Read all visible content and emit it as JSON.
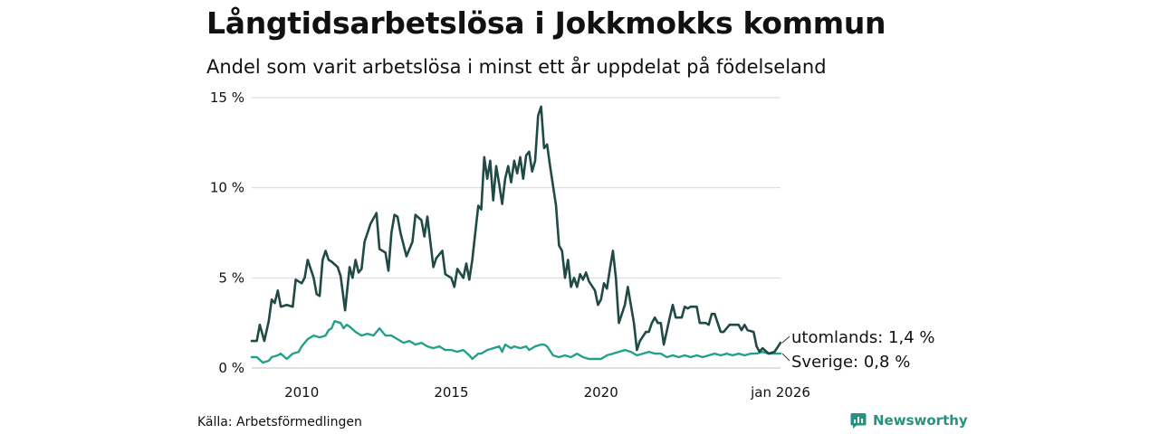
{
  "header": {
    "title": "Långtidsarbetslösa i Jokkmokks kommun",
    "subtitle": "Andel som varit arbetslösa i minst ett år uppdelat på födelseland"
  },
  "footer": {
    "source": "Källa: Arbetsförmedlingen",
    "brand": "Newsworthy"
  },
  "colors": {
    "utomlands": "#1f4a45",
    "sverige": "#22a08a",
    "grid": "#d9d9d9",
    "brand": "#27927f"
  },
  "chart_data": {
    "type": "line",
    "title": "Långtidsarbetslösa i Jokkmokks kommun",
    "subtitle": "Andel som varit arbetslösa i minst ett år uppdelat på födelseland",
    "ylim": [
      0,
      15
    ],
    "xlim": [
      2008.33,
      2026.0
    ],
    "y_ticks": [
      {
        "value": 0,
        "label": "0 %"
      },
      {
        "value": 5,
        "label": "5 %"
      },
      {
        "value": 10,
        "label": "10 %"
      },
      {
        "value": 15,
        "label": "15 %"
      }
    ],
    "x_ticks": [
      {
        "value": 2010,
        "label": "2010"
      },
      {
        "value": 2015,
        "label": "2015"
      },
      {
        "value": 2020,
        "label": "2020"
      },
      {
        "value": 2026,
        "label": "jan 2026"
      }
    ],
    "grid": "horizontal",
    "series": [
      {
        "name": "utomlands",
        "end_label": "utomlands: 1,4 %",
        "points": [
          [
            2008.33,
            1.5
          ],
          [
            2008.5,
            1.5
          ],
          [
            2008.6,
            2.4
          ],
          [
            2008.75,
            1.5
          ],
          [
            2008.9,
            2.6
          ],
          [
            2009.0,
            3.8
          ],
          [
            2009.1,
            3.6
          ],
          [
            2009.2,
            4.3
          ],
          [
            2009.3,
            3.4
          ],
          [
            2009.5,
            3.5
          ],
          [
            2009.7,
            3.4
          ],
          [
            2009.8,
            4.9
          ],
          [
            2010.0,
            4.7
          ],
          [
            2010.1,
            5.0
          ],
          [
            2010.2,
            6.0
          ],
          [
            2010.3,
            5.5
          ],
          [
            2010.4,
            5.0
          ],
          [
            2010.5,
            4.1
          ],
          [
            2010.6,
            4.0
          ],
          [
            2010.7,
            6.0
          ],
          [
            2010.8,
            6.5
          ],
          [
            2010.9,
            6.0
          ],
          [
            2011.0,
            5.9
          ],
          [
            2011.2,
            5.6
          ],
          [
            2011.3,
            5.1
          ],
          [
            2011.45,
            3.2
          ],
          [
            2011.6,
            5.6
          ],
          [
            2011.7,
            5.0
          ],
          [
            2011.8,
            6.0
          ],
          [
            2011.9,
            5.3
          ],
          [
            2012.0,
            5.5
          ],
          [
            2012.1,
            7.0
          ],
          [
            2012.3,
            8.0
          ],
          [
            2012.5,
            8.6
          ],
          [
            2012.6,
            6.6
          ],
          [
            2012.8,
            6.4
          ],
          [
            2012.9,
            5.4
          ],
          [
            2013.0,
            7.5
          ],
          [
            2013.1,
            8.5
          ],
          [
            2013.2,
            8.4
          ],
          [
            2013.3,
            7.5
          ],
          [
            2013.5,
            6.2
          ],
          [
            2013.7,
            7.0
          ],
          [
            2013.8,
            8.5
          ],
          [
            2014.0,
            8.2
          ],
          [
            2014.1,
            7.3
          ],
          [
            2014.2,
            8.4
          ],
          [
            2014.4,
            5.6
          ],
          [
            2014.5,
            6.1
          ],
          [
            2014.7,
            6.5
          ],
          [
            2014.8,
            5.2
          ],
          [
            2015.0,
            5.0
          ],
          [
            2015.1,
            4.5
          ],
          [
            2015.2,
            5.5
          ],
          [
            2015.4,
            5.0
          ],
          [
            2015.5,
            5.8
          ],
          [
            2015.6,
            4.9
          ],
          [
            2015.7,
            6.0
          ],
          [
            2015.9,
            9.0
          ],
          [
            2016.0,
            8.8
          ],
          [
            2016.1,
            11.7
          ],
          [
            2016.2,
            10.5
          ],
          [
            2016.3,
            11.5
          ],
          [
            2016.4,
            9.3
          ],
          [
            2016.5,
            11.2
          ],
          [
            2016.6,
            10.2
          ],
          [
            2016.7,
            9.1
          ],
          [
            2016.8,
            10.5
          ],
          [
            2016.9,
            11.2
          ],
          [
            2017.0,
            10.3
          ],
          [
            2017.1,
            11.5
          ],
          [
            2017.2,
            10.8
          ],
          [
            2017.3,
            11.7
          ],
          [
            2017.4,
            10.5
          ],
          [
            2017.5,
            11.8
          ],
          [
            2017.6,
            12.0
          ],
          [
            2017.7,
            10.9
          ],
          [
            2017.8,
            11.5
          ],
          [
            2017.9,
            14.0
          ],
          [
            2018.0,
            14.5
          ],
          [
            2018.1,
            12.2
          ],
          [
            2018.2,
            12.4
          ],
          [
            2018.3,
            11.2
          ],
          [
            2018.5,
            9.0
          ],
          [
            2018.6,
            6.8
          ],
          [
            2018.7,
            6.5
          ],
          [
            2018.8,
            5.0
          ],
          [
            2018.9,
            6.0
          ],
          [
            2019.0,
            4.5
          ],
          [
            2019.1,
            5.0
          ],
          [
            2019.2,
            4.5
          ],
          [
            2019.3,
            5.2
          ],
          [
            2019.4,
            4.9
          ],
          [
            2019.5,
            5.3
          ],
          [
            2019.6,
            4.8
          ],
          [
            2019.8,
            4.3
          ],
          [
            2019.9,
            3.5
          ],
          [
            2020.0,
            3.8
          ],
          [
            2020.1,
            4.7
          ],
          [
            2020.2,
            4.4
          ],
          [
            2020.3,
            5.5
          ],
          [
            2020.4,
            6.5
          ],
          [
            2020.5,
            5.0
          ],
          [
            2020.6,
            2.5
          ],
          [
            2020.7,
            3.0
          ],
          [
            2020.8,
            3.5
          ],
          [
            2020.9,
            4.5
          ],
          [
            2021.0,
            3.5
          ],
          [
            2021.1,
            2.5
          ],
          [
            2021.2,
            1.0
          ],
          [
            2021.3,
            1.5
          ],
          [
            2021.5,
            2.0
          ],
          [
            2021.6,
            2.0
          ],
          [
            2021.7,
            2.5
          ],
          [
            2021.8,
            2.8
          ],
          [
            2021.9,
            2.5
          ],
          [
            2022.0,
            2.5
          ],
          [
            2022.1,
            1.3
          ],
          [
            2022.3,
            2.8
          ],
          [
            2022.4,
            3.5
          ],
          [
            2022.5,
            2.8
          ],
          [
            2022.7,
            2.8
          ],
          [
            2022.8,
            3.4
          ],
          [
            2022.9,
            3.3
          ],
          [
            2023.0,
            3.4
          ],
          [
            2023.2,
            3.4
          ],
          [
            2023.3,
            2.5
          ],
          [
            2023.5,
            2.5
          ],
          [
            2023.6,
            2.4
          ],
          [
            2023.7,
            3.0
          ],
          [
            2023.8,
            3.0
          ],
          [
            2023.9,
            2.5
          ],
          [
            2024.0,
            2.0
          ],
          [
            2024.1,
            2.0
          ],
          [
            2024.3,
            2.4
          ],
          [
            2024.6,
            2.4
          ],
          [
            2024.7,
            2.1
          ],
          [
            2024.8,
            2.4
          ],
          [
            2024.9,
            2.1
          ],
          [
            2025.1,
            2.0
          ],
          [
            2025.2,
            1.2
          ],
          [
            2025.3,
            0.9
          ],
          [
            2025.4,
            1.1
          ],
          [
            2025.6,
            0.8
          ],
          [
            2025.8,
            0.9
          ],
          [
            2026.0,
            1.4
          ]
        ]
      },
      {
        "name": "Sverige",
        "end_label": "Sverige: 0,8 %",
        "points": [
          [
            2008.33,
            0.6
          ],
          [
            2008.5,
            0.6
          ],
          [
            2008.7,
            0.3
          ],
          [
            2008.9,
            0.4
          ],
          [
            2009.0,
            0.6
          ],
          [
            2009.2,
            0.7
          ],
          [
            2009.3,
            0.8
          ],
          [
            2009.5,
            0.5
          ],
          [
            2009.7,
            0.8
          ],
          [
            2009.9,
            0.9
          ],
          [
            2010.0,
            1.2
          ],
          [
            2010.2,
            1.6
          ],
          [
            2010.4,
            1.8
          ],
          [
            2010.6,
            1.7
          ],
          [
            2010.8,
            1.8
          ],
          [
            2010.9,
            2.1
          ],
          [
            2011.0,
            2.2
          ],
          [
            2011.1,
            2.6
          ],
          [
            2011.3,
            2.5
          ],
          [
            2011.4,
            2.2
          ],
          [
            2011.5,
            2.4
          ],
          [
            2011.6,
            2.3
          ],
          [
            2011.8,
            2.0
          ],
          [
            2012.0,
            1.8
          ],
          [
            2012.2,
            1.9
          ],
          [
            2012.4,
            1.8
          ],
          [
            2012.6,
            2.2
          ],
          [
            2012.8,
            1.8
          ],
          [
            2013.0,
            1.8
          ],
          [
            2013.2,
            1.6
          ],
          [
            2013.4,
            1.4
          ],
          [
            2013.6,
            1.5
          ],
          [
            2013.8,
            1.3
          ],
          [
            2014.0,
            1.4
          ],
          [
            2014.2,
            1.2
          ],
          [
            2014.4,
            1.1
          ],
          [
            2014.6,
            1.2
          ],
          [
            2014.8,
            1.0
          ],
          [
            2015.0,
            1.0
          ],
          [
            2015.2,
            0.9
          ],
          [
            2015.4,
            1.0
          ],
          [
            2015.6,
            0.7
          ],
          [
            2015.7,
            0.5
          ],
          [
            2015.9,
            0.8
          ],
          [
            2016.0,
            0.8
          ],
          [
            2016.2,
            1.0
          ],
          [
            2016.4,
            1.1
          ],
          [
            2016.6,
            1.2
          ],
          [
            2016.7,
            0.9
          ],
          [
            2016.8,
            1.3
          ],
          [
            2017.0,
            1.1
          ],
          [
            2017.1,
            1.2
          ],
          [
            2017.3,
            1.1
          ],
          [
            2017.5,
            1.2
          ],
          [
            2017.6,
            1.0
          ],
          [
            2017.8,
            1.2
          ],
          [
            2018.0,
            1.3
          ],
          [
            2018.1,
            1.3
          ],
          [
            2018.2,
            1.2
          ],
          [
            2018.4,
            0.7
          ],
          [
            2018.6,
            0.6
          ],
          [
            2018.8,
            0.7
          ],
          [
            2019.0,
            0.6
          ],
          [
            2019.2,
            0.8
          ],
          [
            2019.4,
            0.6
          ],
          [
            2019.6,
            0.5
          ],
          [
            2019.8,
            0.5
          ],
          [
            2020.0,
            0.5
          ],
          [
            2020.2,
            0.7
          ],
          [
            2020.4,
            0.8
          ],
          [
            2020.6,
            0.9
          ],
          [
            2020.8,
            1.0
          ],
          [
            2021.0,
            0.9
          ],
          [
            2021.2,
            0.7
          ],
          [
            2021.4,
            0.8
          ],
          [
            2021.6,
            0.9
          ],
          [
            2021.8,
            0.8
          ],
          [
            2022.0,
            0.8
          ],
          [
            2022.2,
            0.6
          ],
          [
            2022.4,
            0.7
          ],
          [
            2022.6,
            0.6
          ],
          [
            2022.8,
            0.7
          ],
          [
            2023.0,
            0.6
          ],
          [
            2023.2,
            0.7
          ],
          [
            2023.4,
            0.6
          ],
          [
            2023.6,
            0.7
          ],
          [
            2023.8,
            0.8
          ],
          [
            2024.0,
            0.7
          ],
          [
            2024.2,
            0.8
          ],
          [
            2024.4,
            0.7
          ],
          [
            2024.6,
            0.8
          ],
          [
            2024.8,
            0.7
          ],
          [
            2025.0,
            0.8
          ],
          [
            2025.2,
            0.8
          ],
          [
            2025.4,
            0.9
          ],
          [
            2025.6,
            0.8
          ],
          [
            2025.8,
            0.8
          ],
          [
            2026.0,
            0.8
          ]
        ]
      }
    ]
  }
}
